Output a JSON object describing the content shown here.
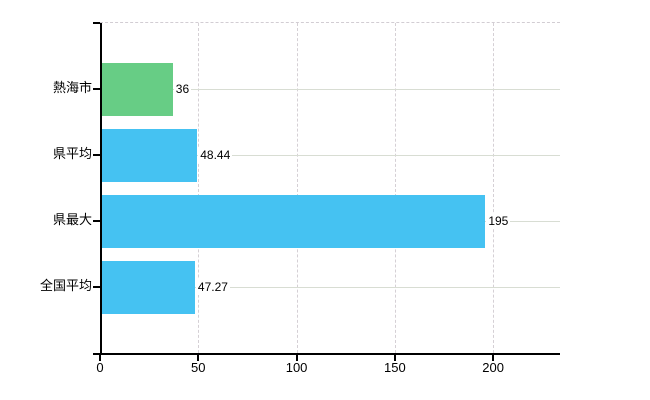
{
  "chart_data": {
    "type": "bar",
    "orientation": "horizontal",
    "title": "",
    "categories": [
      "熱海市",
      "県平均",
      "県最大",
      "全国平均"
    ],
    "values": [
      36,
      48.44,
      195,
      47.27
    ],
    "value_labels": [
      "36",
      "48.44",
      "195",
      "47.27"
    ],
    "bar_colors": [
      "#67cd85",
      "#45c2f2",
      "#45c2f2",
      "#45c2f2"
    ],
    "xticks": [
      0,
      50,
      100,
      150,
      200
    ],
    "xtick_labels": [
      "0",
      "50",
      "100",
      "150",
      "200"
    ],
    "xlim": [
      0,
      234
    ],
    "grid": "on",
    "legend": "none",
    "colors": {
      "green_bar": "#67cd85",
      "blue_bar": "#45c2f2",
      "axis": "#000000",
      "horizontal_grid": "#d8ddd3",
      "vertical_grid": "#d5d0d5",
      "background": "#ffffff",
      "label_text": "#000000"
    }
  }
}
